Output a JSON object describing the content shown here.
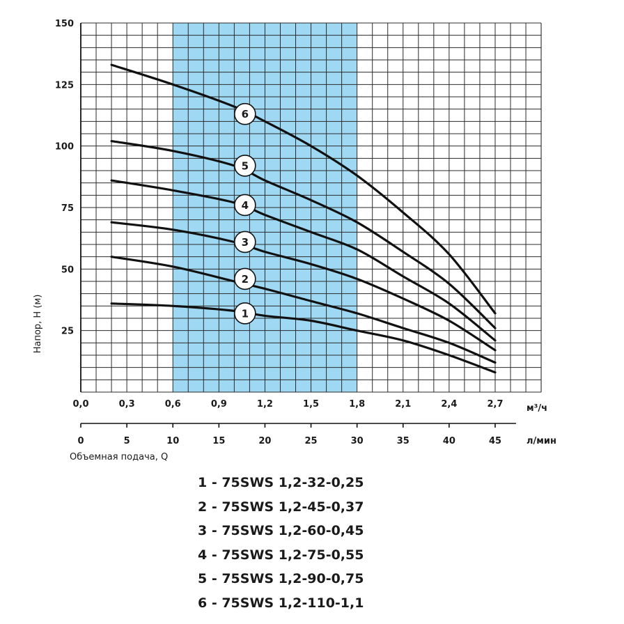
{
  "chart_data": {
    "type": "line",
    "ylabel": "Напор, H (м)",
    "xlabel": "Объемная подача, Q",
    "y_ticks": [
      "25",
      "50",
      "75",
      "100",
      "125",
      "150"
    ],
    "y_range": [
      0,
      150
    ],
    "y_grid_step": 5,
    "x_range_m3h": [
      0,
      2.7
    ],
    "x_grid_step_m3h": 0.1,
    "x_ticks_m3h": [
      "0,0",
      "0,3",
      "0,6",
      "0,9",
      "1,2",
      "1,5",
      "1,8",
      "2,1",
      "2,4",
      "2,7"
    ],
    "x_unit_m3h": "м³/ч",
    "x_ticks_lmin": [
      "0",
      "5",
      "10",
      "15",
      "20",
      "25",
      "30",
      "35",
      "40",
      "45"
    ],
    "x_unit_lmin": "л/мин",
    "grid": true,
    "working_range": {
      "x": [
        0.6,
        1.8
      ],
      "color": "#9fd8f3"
    },
    "line_color": "#111111",
    "series": [
      {
        "name": "1",
        "points": [
          [
            0.2,
            36
          ],
          [
            0.6,
            35
          ],
          [
            1.0,
            33
          ],
          [
            1.2,
            31
          ],
          [
            1.5,
            29
          ],
          [
            1.8,
            25
          ],
          [
            2.1,
            21
          ],
          [
            2.4,
            15
          ],
          [
            2.7,
            8
          ]
        ]
      },
      {
        "name": "2",
        "points": [
          [
            0.2,
            55
          ],
          [
            0.6,
            51
          ],
          [
            1.0,
            45
          ],
          [
            1.2,
            42
          ],
          [
            1.5,
            37
          ],
          [
            1.8,
            32
          ],
          [
            2.1,
            26
          ],
          [
            2.4,
            20
          ],
          [
            2.7,
            12
          ]
        ]
      },
      {
        "name": "3",
        "points": [
          [
            0.2,
            69
          ],
          [
            0.6,
            66
          ],
          [
            1.0,
            61
          ],
          [
            1.2,
            57
          ],
          [
            1.5,
            52
          ],
          [
            1.8,
            46
          ],
          [
            2.1,
            38
          ],
          [
            2.4,
            29
          ],
          [
            2.7,
            17
          ]
        ]
      },
      {
        "name": "4",
        "points": [
          [
            0.2,
            86
          ],
          [
            0.6,
            82
          ],
          [
            1.0,
            77
          ],
          [
            1.2,
            72
          ],
          [
            1.5,
            65
          ],
          [
            1.8,
            58
          ],
          [
            2.1,
            47
          ],
          [
            2.4,
            36
          ],
          [
            2.7,
            21
          ]
        ]
      },
      {
        "name": "5",
        "points": [
          [
            0.2,
            102
          ],
          [
            0.6,
            98
          ],
          [
            1.0,
            92
          ],
          [
            1.2,
            86
          ],
          [
            1.5,
            78
          ],
          [
            1.8,
            69
          ],
          [
            2.1,
            57
          ],
          [
            2.4,
            44
          ],
          [
            2.7,
            26
          ]
        ]
      },
      {
        "name": "6",
        "points": [
          [
            0.2,
            133
          ],
          [
            0.6,
            125
          ],
          [
            1.0,
            116
          ],
          [
            1.2,
            110
          ],
          [
            1.5,
            100
          ],
          [
            1.8,
            88
          ],
          [
            2.1,
            73
          ],
          [
            2.4,
            56
          ],
          [
            2.7,
            32
          ]
        ]
      }
    ],
    "markers": [
      {
        "label": "1",
        "x": 1.07,
        "y": 32
      },
      {
        "label": "2",
        "x": 1.07,
        "y": 46
      },
      {
        "label": "3",
        "x": 1.07,
        "y": 61
      },
      {
        "label": "4",
        "x": 1.07,
        "y": 76
      },
      {
        "label": "5",
        "x": 1.07,
        "y": 92
      },
      {
        "label": "6",
        "x": 1.07,
        "y": 113
      }
    ]
  },
  "legend": [
    "1 - 75SWS 1,2-32-0,25",
    "2 - 75SWS 1,2-45-0,37",
    "3 - 75SWS 1,2-60-0,45",
    "4 - 75SWS 1,2-75-0,55",
    "5 - 75SWS 1,2-90-0,75",
    "6 - 75SWS 1,2-110-1,1"
  ]
}
